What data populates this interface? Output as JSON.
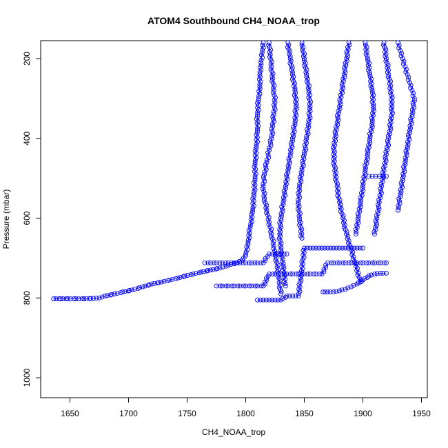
{
  "chart_data": {
    "type": "scatter",
    "title": "ATOM4 Southbound CH4_NOAA_trop",
    "xlabel": "CH4_NOAA_trop",
    "ylabel": "Pressure (mbar)",
    "xlim": [
      1625,
      1955
    ],
    "ylim": [
      1050,
      155
    ],
    "y_reversed": true,
    "grid": false,
    "legend": "none",
    "marker": "open-circle",
    "connected": true,
    "color": "#0000ff",
    "xticks": [
      1650,
      1700,
      1750,
      1800,
      1850,
      1900,
      1950
    ],
    "yticks": [
      200,
      400,
      600,
      800,
      1000
    ],
    "series": [
      {
        "x": [
          1636,
          1642,
          1648,
          1655,
          1662,
          1670,
          1675,
          1680,
          1688,
          1695,
          1703,
          1712,
          1720,
          1728,
          1735,
          1742,
          1748,
          1755,
          1762,
          1770,
          1778,
          1785,
          1792,
          1797,
          1800,
          1802,
          1804,
          1806,
          1807,
          1808,
          1808,
          1809,
          1810,
          1810,
          1811,
          1812,
          1812,
          1813,
          1814,
          1815
        ],
        "y": [
          802,
          802,
          802,
          802,
          802,
          801,
          800,
          795,
          790,
          785,
          780,
          772,
          765,
          760,
          755,
          750,
          745,
          740,
          735,
          730,
          725,
          718,
          712,
          705,
          690,
          660,
          620,
          580,
          540,
          500,
          460,
          420,
          380,
          340,
          300,
          270,
          240,
          210,
          185,
          160
        ]
      },
      {
        "x": [
          1820,
          1821,
          1822,
          1823,
          1824,
          1825,
          1824,
          1823,
          1822,
          1820,
          1818,
          1816,
          1815,
          1816,
          1818,
          1820,
          1822,
          1824,
          1826,
          1828,
          1830
        ],
        "y": [
          160,
          190,
          220,
          250,
          280,
          310,
          340,
          370,
          400,
          430,
          460,
          490,
          520,
          550,
          580,
          610,
          640,
          670,
          700,
          740,
          790
        ]
      },
      {
        "x": [
          1836,
          1838,
          1840,
          1842,
          1843,
          1842,
          1840,
          1838,
          1836,
          1834,
          1832,
          1830,
          1829,
          1830,
          1832,
          1834
        ],
        "y": [
          160,
          200,
          240,
          280,
          320,
          360,
          400,
          440,
          480,
          520,
          560,
          600,
          640,
          680,
          720,
          770
        ]
      },
      {
        "x": [
          1848,
          1850,
          1852,
          1854,
          1855,
          1854,
          1852,
          1850,
          1848,
          1846,
          1845,
          1846,
          1848
        ],
        "y": [
          160,
          200,
          240,
          280,
          320,
          360,
          400,
          440,
          480,
          520,
          560,
          600,
          650
        ]
      },
      {
        "x": [
          1888,
          1886,
          1884,
          1882,
          1880,
          1878,
          1876,
          1875,
          1876,
          1878,
          1880,
          1883,
          1886,
          1890,
          1894,
          1898
        ],
        "y": [
          160,
          200,
          240,
          280,
          320,
          360,
          400,
          440,
          480,
          520,
          560,
          600,
          640,
          680,
          720,
          760
        ]
      },
      {
        "x": [
          1902,
          1904,
          1906,
          1908,
          1909,
          1908,
          1906,
          1904,
          1902,
          1900,
          1898,
          1896,
          1894
        ],
        "y": [
          160,
          200,
          240,
          280,
          320,
          360,
          400,
          440,
          480,
          520,
          560,
          600,
          640
        ]
      },
      {
        "x": [
          1918,
          1920,
          1922,
          1924,
          1925,
          1924,
          1922,
          1920,
          1918,
          1916,
          1914,
          1912,
          1910
        ],
        "y": [
          160,
          200,
          240,
          280,
          320,
          360,
          400,
          440,
          480,
          520,
          560,
          600,
          640
        ]
      },
      {
        "x": [
          1930,
          1932,
          1934,
          1936,
          1938,
          1940,
          1942,
          1944,
          1942,
          1940,
          1938,
          1936,
          1934,
          1932,
          1930
        ],
        "y": [
          160,
          180,
          200,
          220,
          240,
          260,
          280,
          300,
          340,
          380,
          420,
          460,
          500,
          540,
          580
        ]
      },
      {
        "x": [
          1866,
          1870,
          1875,
          1880,
          1885,
          1890,
          1895,
          1900,
          1905,
          1910,
          1915,
          1920
        ],
        "y": [
          785,
          785,
          785,
          782,
          778,
          772,
          765,
          755,
          745,
          740,
          738,
          738
        ]
      },
      {
        "x": [
          1775,
          1780,
          1785,
          1790,
          1795,
          1800,
          1805,
          1810,
          1815,
          1820,
          1825,
          1830,
          1835,
          1840,
          1845,
          1850,
          1855,
          1860,
          1865,
          1870,
          1875,
          1880,
          1885,
          1890,
          1895,
          1900,
          1905,
          1910,
          1915,
          1920
        ],
        "y": [
          770,
          770,
          770,
          770,
          770,
          770,
          770,
          770,
          770,
          740,
          740,
          740,
          740,
          740,
          740,
          740,
          740,
          740,
          740,
          712,
          712,
          712,
          712,
          712,
          712,
          712,
          712,
          712,
          712,
          712
        ]
      },
      {
        "x": [
          1810,
          1815,
          1820,
          1825,
          1830,
          1835,
          1840,
          1845,
          1850,
          1855,
          1860,
          1865,
          1870,
          1875,
          1880,
          1885,
          1890,
          1895,
          1900
        ],
        "y": [
          805,
          805,
          805,
          805,
          805,
          795,
          795,
          795,
          675,
          675,
          675,
          675,
          675,
          675,
          675,
          675,
          675,
          675,
          675
        ]
      },
      {
        "x": [
          1905,
          1908,
          1911,
          1914,
          1917,
          1920
        ],
        "y": [
          495,
          495,
          495,
          495,
          495,
          495
        ]
      },
      {
        "x": [
          1765,
          1770,
          1775,
          1780,
          1785,
          1790,
          1795,
          1800,
          1805,
          1810,
          1815,
          1820,
          1825,
          1830,
          1835
        ],
        "y": [
          712,
          712,
          712,
          712,
          712,
          712,
          712,
          712,
          712,
          712,
          712,
          690,
          690,
          690,
          690
        ]
      }
    ]
  }
}
